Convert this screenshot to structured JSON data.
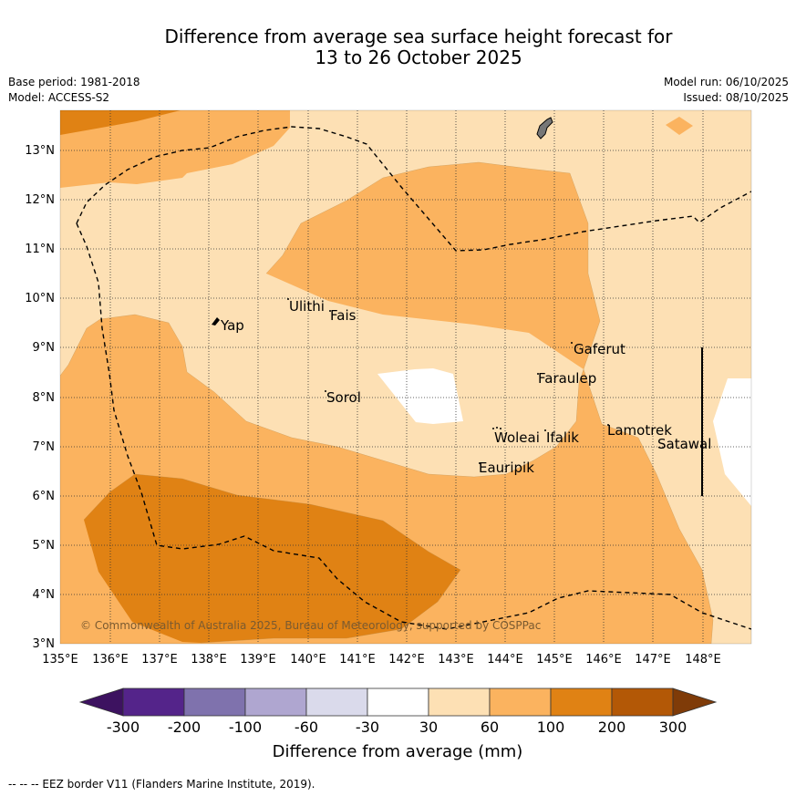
{
  "header": {
    "title_line1": "Difference from average sea surface height forecast for",
    "title_line2": "13 to 26 October 2025",
    "base_period": "Base period: 1981-2018",
    "model": "Model: ACCESS-S2",
    "model_run": "Model run: 06/10/2025",
    "issued": "Issued: 08/10/2025"
  },
  "map": {
    "lat_labels": [
      "13°N",
      "12°N",
      "11°N",
      "10°N",
      "9°N",
      "8°N",
      "7°N",
      "6°N",
      "5°N",
      "4°N",
      "3°N"
    ],
    "lon_labels": [
      "135°E",
      "136°E",
      "137°E",
      "138°E",
      "139°E",
      "140°E",
      "141°E",
      "142°E",
      "143°E",
      "144°E",
      "145°E",
      "146°E",
      "147°E",
      "148°E"
    ],
    "places": {
      "yap": "Yap",
      "ulithi": "Ulithi",
      "fais": "Fais",
      "sorol": "Sorol",
      "gaferut": "Gaferut",
      "faraulep": "Faraulep",
      "woleai": "Woleai",
      "ifalik": "Ifalik",
      "lamotrek": "Lamotrek",
      "satawal": "Satawal",
      "eauripik": "Eauripik"
    },
    "copyright": "© Commonwealth of Australia 2025, Bureau of Meteorology, supported by COSPPac"
  },
  "colorbar": {
    "title": "Difference from average (mm)",
    "tick_labels": [
      "-300",
      "-200",
      "-100",
      "-60",
      "-30",
      "30",
      "60",
      "100",
      "200",
      "300"
    ],
    "colors": [
      "#3d1260",
      "#54248a",
      "#7f72ad",
      "#afa6d0",
      "#dadaeb",
      "#ffffff",
      "#fde0b4",
      "#fbb35f",
      "#e08214",
      "#b35806",
      "#7f3b08"
    ]
  },
  "footnote": "--  --  -- EEZ border V11 (Flanders Marine Institute, 2019)."
}
